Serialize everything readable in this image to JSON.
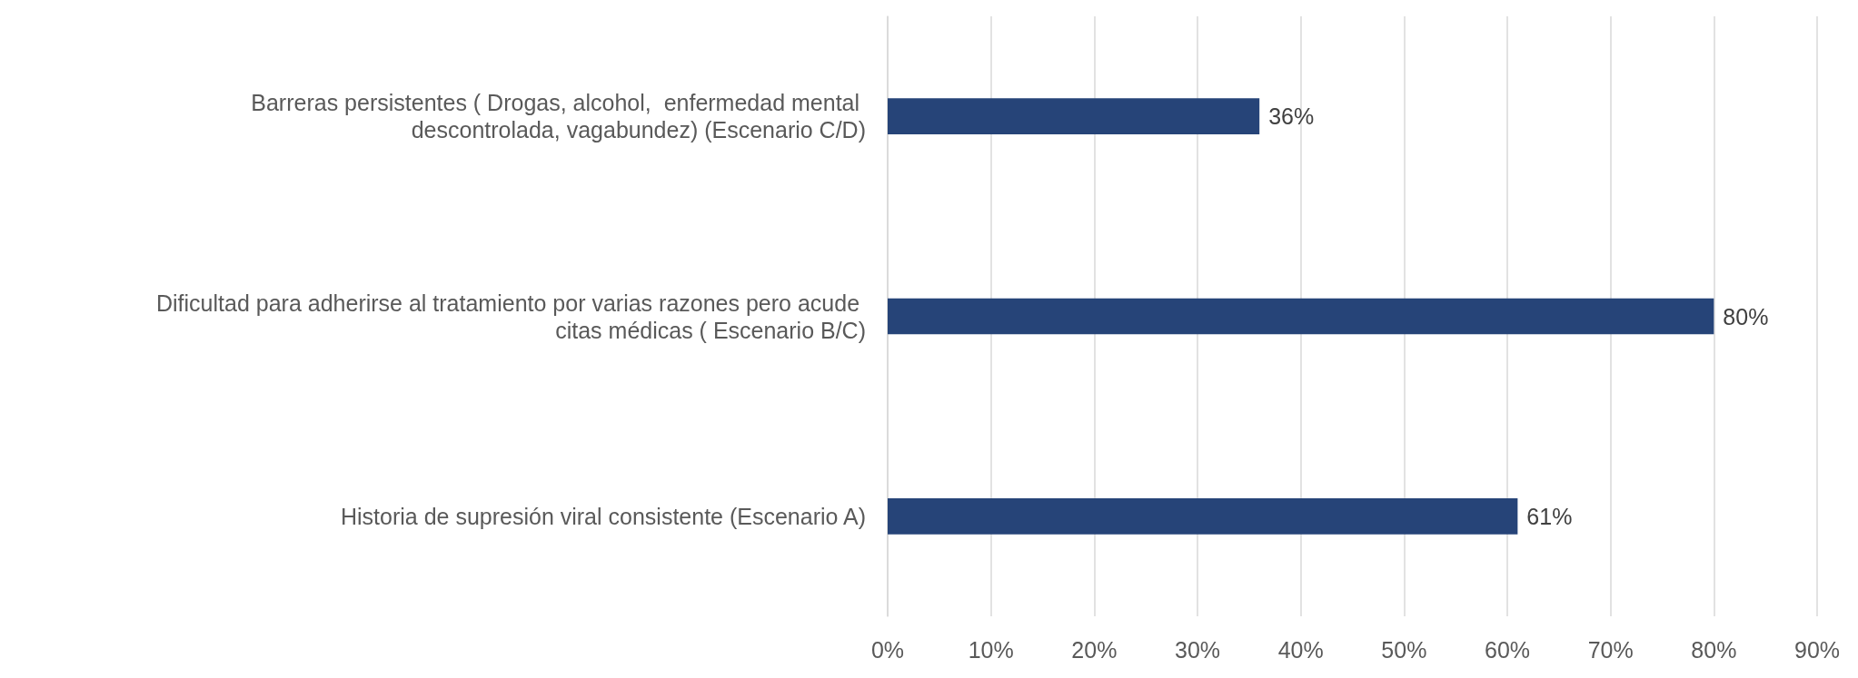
{
  "chart_data": {
    "type": "bar",
    "orientation": "horizontal",
    "categories": [
      "Barreras persistentes ( Drogas, alcohol,  enfermedad mental descontrolada, vagabundez) (Escenario C/D)",
      "Dificultad para adherirse al tratamiento por varias razones pero acude citas médicas ( Escenario B/C)",
      "Historia de supresión viral consistente (Escenario A)"
    ],
    "values": [
      36,
      80,
      61
    ],
    "value_labels": [
      "36%",
      "80%",
      "61%"
    ],
    "color": "#264478",
    "xlim": [
      0,
      90
    ],
    "xticks": [
      {
        "value": 0,
        "label": "0%"
      },
      {
        "value": 10,
        "label": "10%"
      },
      {
        "value": 20,
        "label": "20%"
      },
      {
        "value": 30,
        "label": "30%"
      },
      {
        "value": 40,
        "label": "40%"
      },
      {
        "value": 50,
        "label": "50%"
      },
      {
        "value": 60,
        "label": "60%"
      },
      {
        "value": 70,
        "label": "70%"
      },
      {
        "value": 80,
        "label": "80%"
      },
      {
        "value": 90,
        "label": "90%"
      }
    ],
    "grid": "x"
  }
}
